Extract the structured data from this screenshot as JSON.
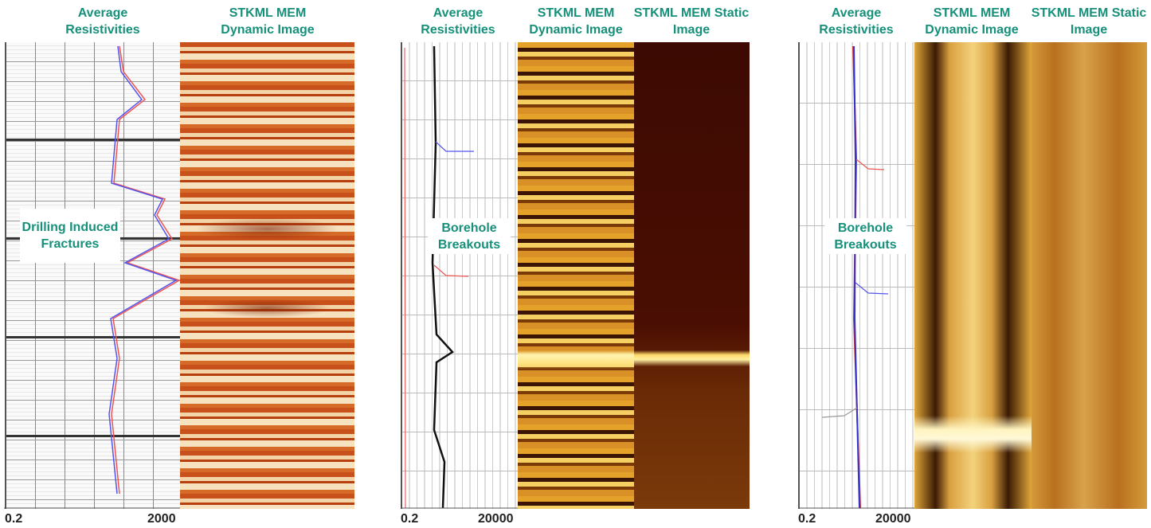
{
  "panels": [
    {
      "headers": [
        "Average Resistivities",
        "STKML MEM Dynamic Image"
      ],
      "scale": {
        "min": "0.2",
        "max": "2000"
      },
      "annotation": "Drilling Induced Fractures"
    },
    {
      "headers": [
        "Average Resistivities",
        "STKML MEM Dynamic Image",
        "STKML MEM Static Image"
      ],
      "scale": {
        "min": "0.2",
        "max": "20000"
      },
      "annotation": "Borehole Breakouts"
    },
    {
      "headers": [
        "Average Resistivities",
        "STKML MEM Dynamic Image",
        "STKML MEM Static Image"
      ],
      "scale": {
        "min": "0.2",
        "max": "20000"
      },
      "annotation": "Borehole Breakouts"
    }
  ]
}
